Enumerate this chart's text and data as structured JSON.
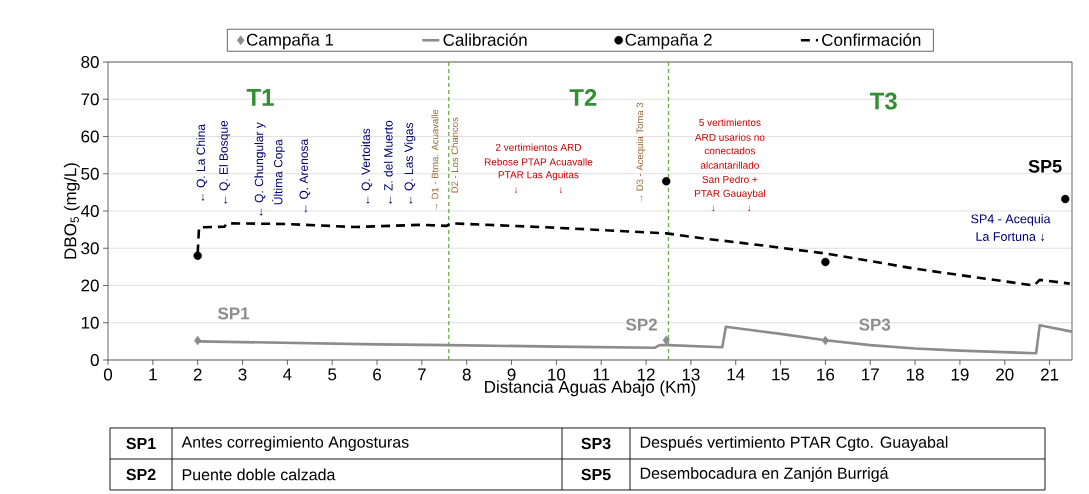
{
  "chart_data": {
    "type": "scatter",
    "xlabel": "Distancia Aguas Abajo (Km)",
    "ylabel": "DBO$_{5}$ (mg/L)",
    "xlim": [
      0,
      21.5
    ],
    "ylim": [
      0,
      80
    ],
    "xticks": [
      0,
      1,
      2,
      3,
      4,
      5,
      6,
      7,
      8,
      9,
      10,
      11,
      12,
      13,
      14,
      15,
      16,
      17,
      18,
      19,
      20,
      21
    ],
    "yticks": [
      0,
      10,
      20,
      30,
      40,
      50,
      60,
      70,
      80
    ],
    "grid": "y",
    "legend": "top",
    "series": [
      {
        "name": "Campaña 1",
        "marker": "diamond",
        "color": "#8c8c8c",
        "x": [
          2,
          12.45,
          16
        ],
        "values": [
          5.2,
          5.3,
          5.2
        ]
      },
      {
        "name": "Calibración",
        "type": "line",
        "line_style": "solid",
        "color": "#8c8c8c",
        "x": [
          2,
          4,
          6,
          7.6,
          10,
          12.2,
          12.3,
          12.5,
          13.7,
          13.78,
          15,
          16,
          17,
          18,
          19,
          20.7,
          20.78,
          21.5
        ],
        "values": [
          5.0,
          4.6,
          4.2,
          4.0,
          3.6,
          3.3,
          4.0,
          4.0,
          3.4,
          8.9,
          7.0,
          5.3,
          4.0,
          3.1,
          2.5,
          1.8,
          9.3,
          7.6
        ]
      },
      {
        "name": "Campaña 2",
        "marker": "circle",
        "color": "#000000",
        "x": [
          2,
          12.45,
          16,
          21.35
        ],
        "values": [
          28,
          48,
          26.3,
          43.2
        ]
      },
      {
        "name": "Confirmación",
        "type": "line",
        "line_style": "dashed",
        "color": "#000000",
        "x": [
          2,
          2.03,
          2.6,
          2.65,
          4,
          5.5,
          7,
          7.55,
          7.65,
          10,
          12.45,
          13.3,
          14.3,
          16,
          18,
          20.65,
          20.78,
          21.45
        ],
        "values": [
          28.6,
          35.6,
          35.8,
          36.7,
          36.5,
          35.7,
          36.3,
          36.0,
          36.7,
          35.5,
          34.0,
          32.6,
          31.2,
          28.6,
          24.5,
          20.0,
          21.5,
          20.5
        ]
      }
    ],
    "ref_lines": [
      {
        "axis": "x",
        "value": 7.6,
        "color": "#70ad47",
        "line_style": "dashed"
      },
      {
        "axis": "x",
        "value": 12.5,
        "color": "#70ad47",
        "line_style": "dashed"
      }
    ],
    "annotations": [
      "T1",
      "T2",
      "T3",
      "SP1",
      "SP2",
      "SP3",
      "SP5",
      "← Q. La China",
      "← Q. El Bosque",
      "← Q. Chungular y",
      "Última Copa",
      "← Q. Arenosa",
      "← Q. Vertoitas",
      "← Z. del Muerto",
      "← Q. Las Vigas",
      "→ D1 - Btma. Acuavalle",
      "D2 - Los Chancos",
      "→ D3 - Acequia Toma 3",
      "2 vertimientos  ARD",
      "Rebose  PTAP  Acuavalle",
      "PTAR Las Aguitas",
      "↓",
      "↓",
      "5 vertimientos",
      "ARD usarios  no",
      "conectados",
      "alcantarillado",
      "San Pedro +",
      "PTAR Gauaybal",
      "↓",
      "↓",
      "SP4 - Acequia",
      "La Fortuna ↓",
      "SP1",
      "Antes corregimiento Angosturas",
      "SP3",
      "Después vertimiento PTAR Cgto. Guayabal",
      "SP2",
      "Puente doble calzada",
      "SP5",
      "Desembocadura en Zanjón Burrigá"
    ]
  }
}
